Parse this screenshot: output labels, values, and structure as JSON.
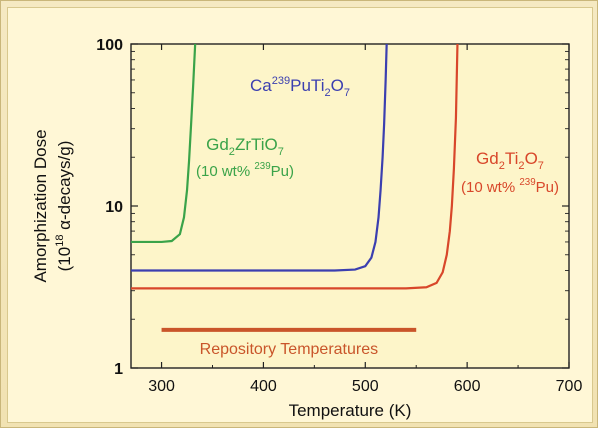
{
  "chart_data": {
    "type": "line",
    "xlabel": "Temperature (K)",
    "ylabel": {
      "line1": "Amorphization Dose",
      "line2_pre": "(10",
      "line2_sup": "18",
      "line2_post": " α-decays/g)"
    },
    "xlim": [
      270,
      700
    ],
    "ylim": [
      1,
      100
    ],
    "yscale": "log",
    "x_ticks": [
      300,
      400,
      500,
      600,
      700
    ],
    "x_tick_labels": [
      "300",
      "400",
      "500",
      "600",
      "700"
    ],
    "y_ticks": [
      1,
      10,
      100
    ],
    "y_tick_labels": [
      "1",
      "10",
      "100"
    ],
    "grid": false,
    "plot_background": "#fdf5c9",
    "series": [
      {
        "name": "Gd2ZrTiO7",
        "color": "#3aa349",
        "label_parts": [
          [
            "Gd",
            ""
          ],
          [
            "2",
            "sub"
          ],
          [
            "ZrTiO",
            ""
          ],
          [
            "7",
            "sub"
          ]
        ],
        "sublabel_parts": [
          [
            "(10 wt% ",
            ""
          ],
          [
            "239",
            "sup"
          ],
          [
            "Pu)",
            ""
          ]
        ],
        "points": [
          [
            270,
            6.0
          ],
          [
            300,
            6.0
          ],
          [
            310,
            6.08
          ],
          [
            318,
            6.7
          ],
          [
            322,
            8.5
          ],
          [
            325,
            12.5
          ],
          [
            327,
            19
          ],
          [
            329,
            32
          ],
          [
            331,
            55
          ],
          [
            333,
            100
          ]
        ]
      },
      {
        "name": "Ca239PuTi2O7",
        "color": "#3b3fb0",
        "label_parts": [
          [
            "Ca",
            ""
          ],
          [
            "239",
            "sup"
          ],
          [
            "PuTi",
            ""
          ],
          [
            "2",
            "sub"
          ],
          [
            "O",
            ""
          ],
          [
            "7",
            "sub"
          ]
        ],
        "sublabel_parts": [],
        "points": [
          [
            270,
            4.0
          ],
          [
            470,
            4.0
          ],
          [
            490,
            4.05
          ],
          [
            500,
            4.25
          ],
          [
            506,
            4.8
          ],
          [
            510,
            6.0
          ],
          [
            513,
            8.5
          ],
          [
            515,
            12.5
          ],
          [
            517,
            20
          ],
          [
            518.5,
            32
          ],
          [
            520,
            60
          ],
          [
            521,
            100
          ]
        ]
      },
      {
        "name": "Gd2Ti2O7",
        "color": "#d8472a",
        "label_parts": [
          [
            "Gd",
            ""
          ],
          [
            "2",
            "sub"
          ],
          [
            "Ti",
            ""
          ],
          [
            "2",
            "sub"
          ],
          [
            "O",
            ""
          ],
          [
            "7",
            "sub"
          ]
        ],
        "sublabel_parts": [
          [
            "(10 wt% ",
            ""
          ],
          [
            "239",
            "sup"
          ],
          [
            "Pu)",
            ""
          ]
        ],
        "points": [
          [
            270,
            3.1
          ],
          [
            540,
            3.1
          ],
          [
            560,
            3.15
          ],
          [
            570,
            3.35
          ],
          [
            576,
            3.9
          ],
          [
            580,
            5.0
          ],
          [
            583,
            7.0
          ],
          [
            585,
            10.0
          ],
          [
            587,
            17
          ],
          [
            589,
            35
          ],
          [
            590.5,
            100
          ]
        ]
      }
    ],
    "annotations": [
      {
        "text": "Repository Temperatures",
        "color": "#c9552a",
        "range": [
          300,
          550
        ],
        "value": 1.72
      }
    ]
  }
}
